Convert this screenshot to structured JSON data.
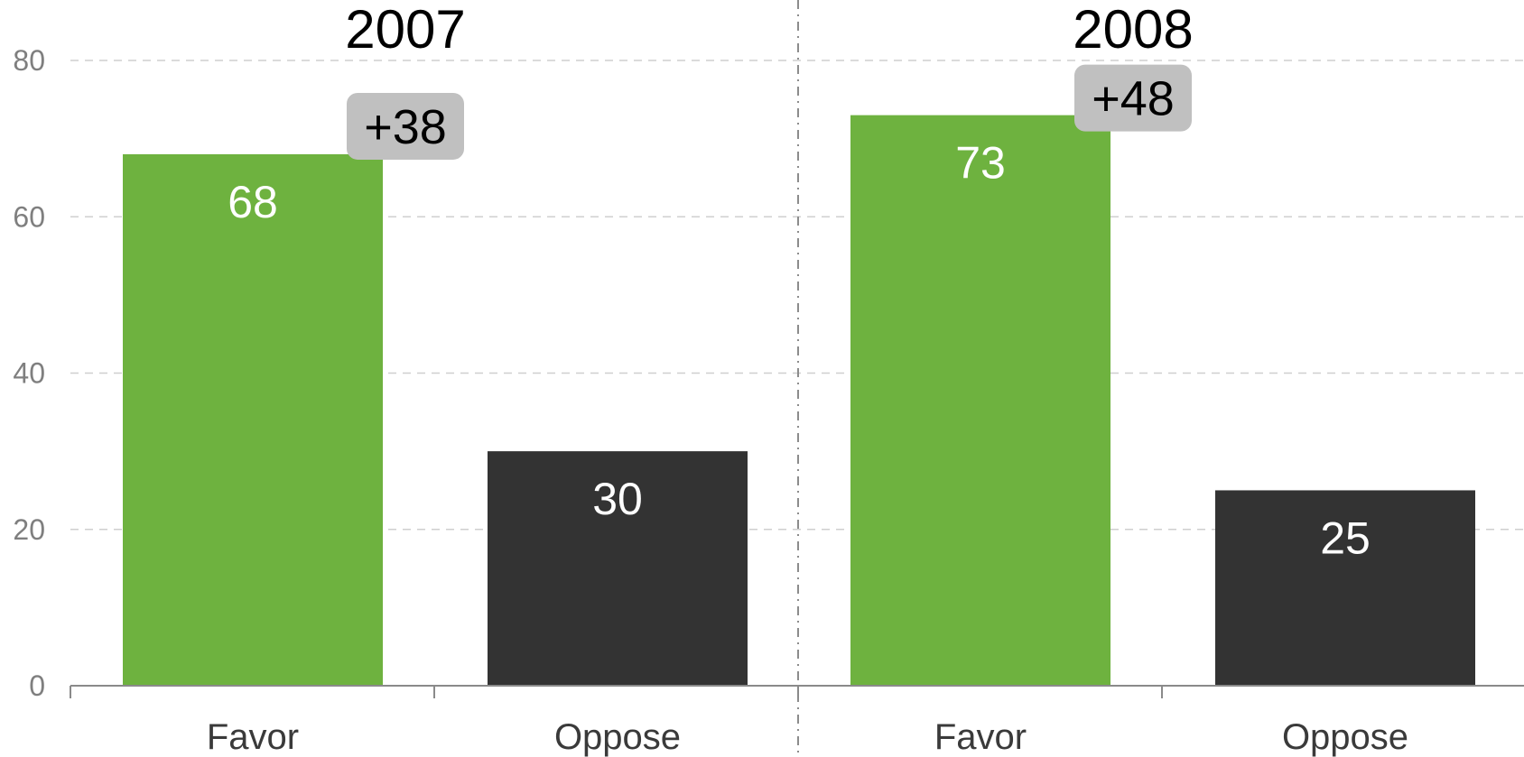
{
  "chart_data": {
    "type": "bar",
    "ylim": [
      0,
      80
    ],
    "yticks": [
      "0",
      "20",
      "40",
      "60",
      "80"
    ],
    "grid": true,
    "colors": {
      "Favor": "#6eb23f",
      "Oppose": "#333333",
      "badge": "#c0c0c0"
    },
    "panels": [
      {
        "title": "2007",
        "categories": [
          "Favor",
          "Oppose"
        ],
        "values": [
          68,
          30
        ],
        "labels": [
          "68",
          "30"
        ],
        "difference": "+38"
      },
      {
        "title": "2008",
        "categories": [
          "Favor",
          "Oppose"
        ],
        "values": [
          73,
          25
        ],
        "labels": [
          "73",
          "25"
        ],
        "difference": "+48"
      }
    ]
  }
}
